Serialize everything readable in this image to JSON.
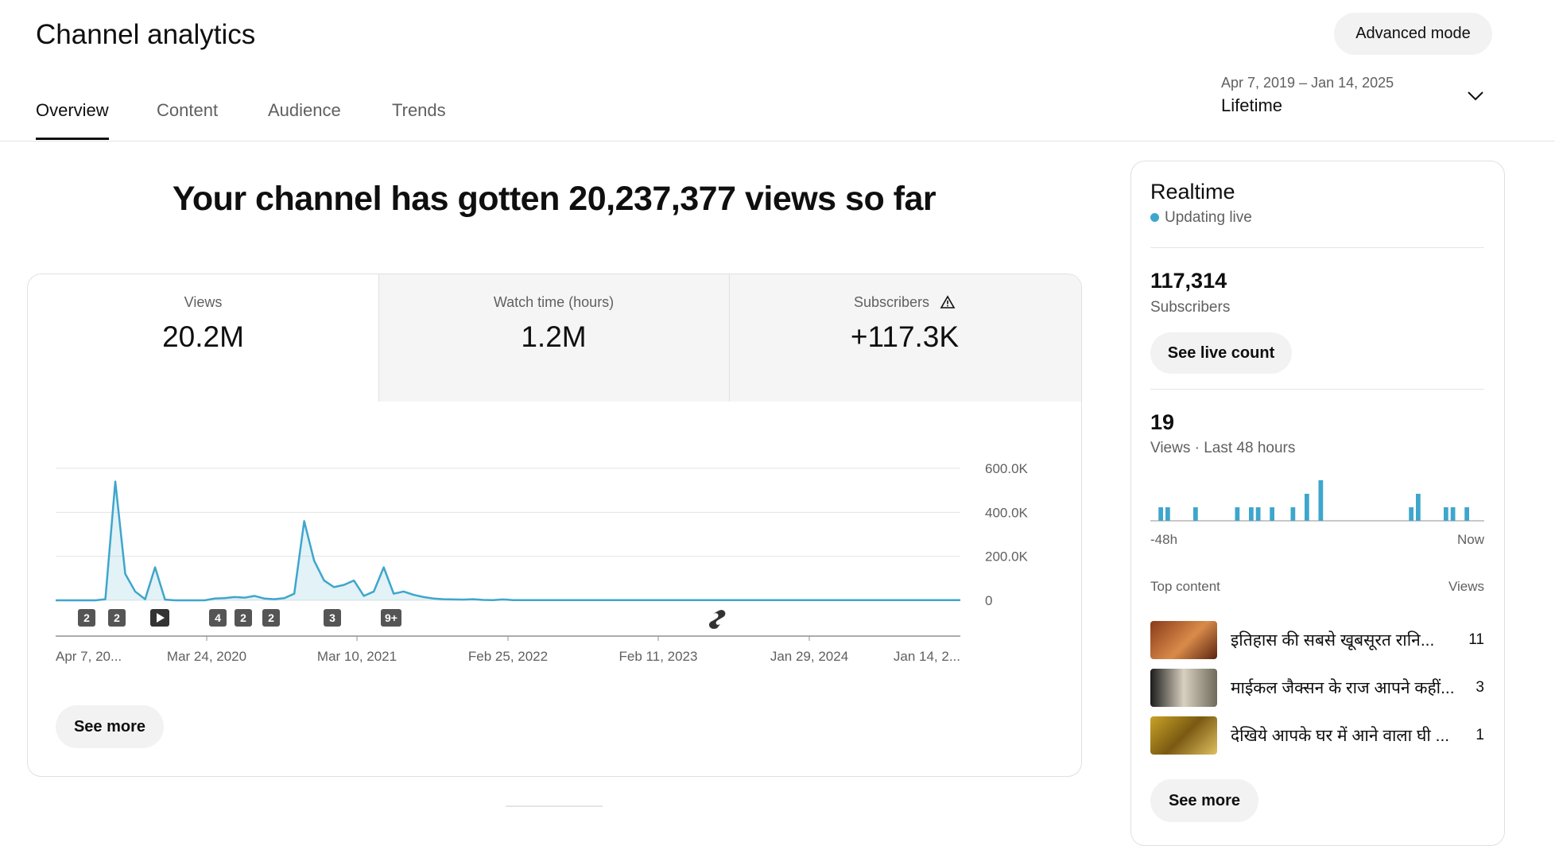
{
  "header": {
    "title": "Channel analytics",
    "advanced_mode": "Advanced mode",
    "tabs": [
      "Overview",
      "Content",
      "Audience",
      "Trends"
    ],
    "date_range": "Apr 7, 2019 – Jan 14, 2025",
    "period": "Lifetime"
  },
  "headline": "Your channel has gotten 20,237,377 views so far",
  "metrics": [
    {
      "label": "Views",
      "value": "20.2M"
    },
    {
      "label": "Watch time (hours)",
      "value": "1.2M"
    },
    {
      "label": "Subscribers",
      "value": "+117.3K"
    }
  ],
  "chart_data": {
    "type": "line",
    "color": "#3ea6cc",
    "ylim": [
      0,
      600000
    ],
    "yticks": [
      {
        "value": 0,
        "label": "0"
      },
      {
        "value": 200000,
        "label": "200.0K"
      },
      {
        "value": 400000,
        "label": "400.0K"
      },
      {
        "value": 600000,
        "label": "600.0K"
      }
    ],
    "grid": true,
    "x_labels": [
      "Apr 7, 20...",
      "Mar 24, 2020",
      "Mar 10, 2021",
      "Feb 25, 2022",
      "Feb 11, 2023",
      "Jan 29, 2024",
      "Jan 14, 2..."
    ],
    "markers": [
      "2",
      "2",
      "4",
      "2",
      "2",
      "3",
      "9+"
    ],
    "values": [
      0,
      0,
      0,
      0,
      0,
      5000,
      540000,
      120000,
      40000,
      5000,
      150000,
      3000,
      0,
      0,
      0,
      0,
      8000,
      10000,
      15000,
      12000,
      20000,
      8000,
      5000,
      10000,
      30000,
      360000,
      180000,
      90000,
      60000,
      70000,
      90000,
      20000,
      40000,
      150000,
      30000,
      40000,
      25000,
      15000,
      8000,
      5000,
      4000,
      3000,
      5000,
      2000,
      1000,
      4000,
      1000,
      1000,
      1000,
      1000,
      1000,
      1000,
      1000,
      1000,
      1000,
      1000,
      1000,
      1000,
      1000,
      1000,
      1000,
      1000,
      1000,
      1000,
      1000,
      1000,
      1000,
      1000,
      1000,
      1000,
      1000,
      1000,
      1000,
      1000,
      1000,
      1000,
      1000,
      1000,
      1000,
      1000,
      1000,
      1000,
      1000,
      1000,
      1000,
      1000,
      1000,
      1000,
      1000,
      1000,
      1000,
      1000
    ]
  },
  "see_more": "See more",
  "realtime": {
    "title": "Realtime",
    "status": "Updating live",
    "subscribers": "117,314",
    "subscribers_label": "Subscribers",
    "live_count_button": "See live count",
    "views": "19",
    "views_label": "Views · Last 48 hours",
    "chart": {
      "type": "bar",
      "color": "#3ea6cc",
      "values": [
        0,
        1,
        1,
        0,
        0,
        0,
        1,
        0,
        0,
        0,
        0,
        0,
        1,
        0,
        1,
        1,
        0,
        1,
        0,
        0,
        1,
        0,
        2,
        0,
        3,
        0,
        0,
        0,
        0,
        0,
        0,
        0,
        0,
        0,
        0,
        0,
        0,
        1,
        2,
        0,
        0,
        0,
        1,
        1,
        0,
        1,
        0,
        0
      ],
      "x_start": "-48h",
      "x_end": "Now"
    },
    "top_content": {
      "heading": "Top content",
      "metric": "Views",
      "items": [
        {
          "title": "इतिहास की सबसे खूबसूरत रानि...",
          "views": 11
        },
        {
          "title": "माईकल जैक्सन के राज आपने कहीं...",
          "views": 3
        },
        {
          "title": "देखिये आपके घर में आने वाला घी ...",
          "views": 1
        }
      ]
    },
    "see_more": "See more"
  }
}
